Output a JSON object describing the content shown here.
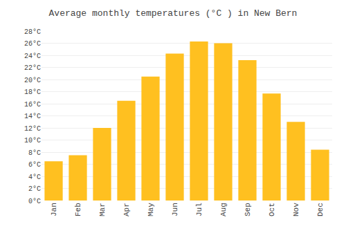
{
  "chart_data": {
    "type": "bar",
    "title": "Average monthly temperatures (°C ) in New Bern",
    "categories": [
      "Jan",
      "Feb",
      "Mar",
      "Apr",
      "May",
      "Jun",
      "Jul",
      "Aug",
      "Sep",
      "Oct",
      "Nov",
      "Dec"
    ],
    "values": [
      6.5,
      7.5,
      12.0,
      16.5,
      20.5,
      24.3,
      26.3,
      26.0,
      23.2,
      17.7,
      13.0,
      8.4
    ],
    "color": "#FFC020",
    "ylim": [
      0,
      28
    ],
    "yticks": [
      {
        "value": 0,
        "label": "0°C"
      },
      {
        "value": 2,
        "label": "2°C"
      },
      {
        "value": 4,
        "label": "4°C"
      },
      {
        "value": 6,
        "label": "6°C"
      },
      {
        "value": 8,
        "label": "8°C"
      },
      {
        "value": 10,
        "label": "10°C"
      },
      {
        "value": 12,
        "label": "12°C"
      },
      {
        "value": 14,
        "label": "14°C"
      },
      {
        "value": 16,
        "label": "16°C"
      },
      {
        "value": 18,
        "label": "18°C"
      },
      {
        "value": 20,
        "label": "20°C"
      },
      {
        "value": 22,
        "label": "22°C"
      },
      {
        "value": 24,
        "label": "24°C"
      },
      {
        "value": 26,
        "label": "26°C"
      },
      {
        "value": 28,
        "label": "28°C"
      }
    ],
    "grid": true
  }
}
